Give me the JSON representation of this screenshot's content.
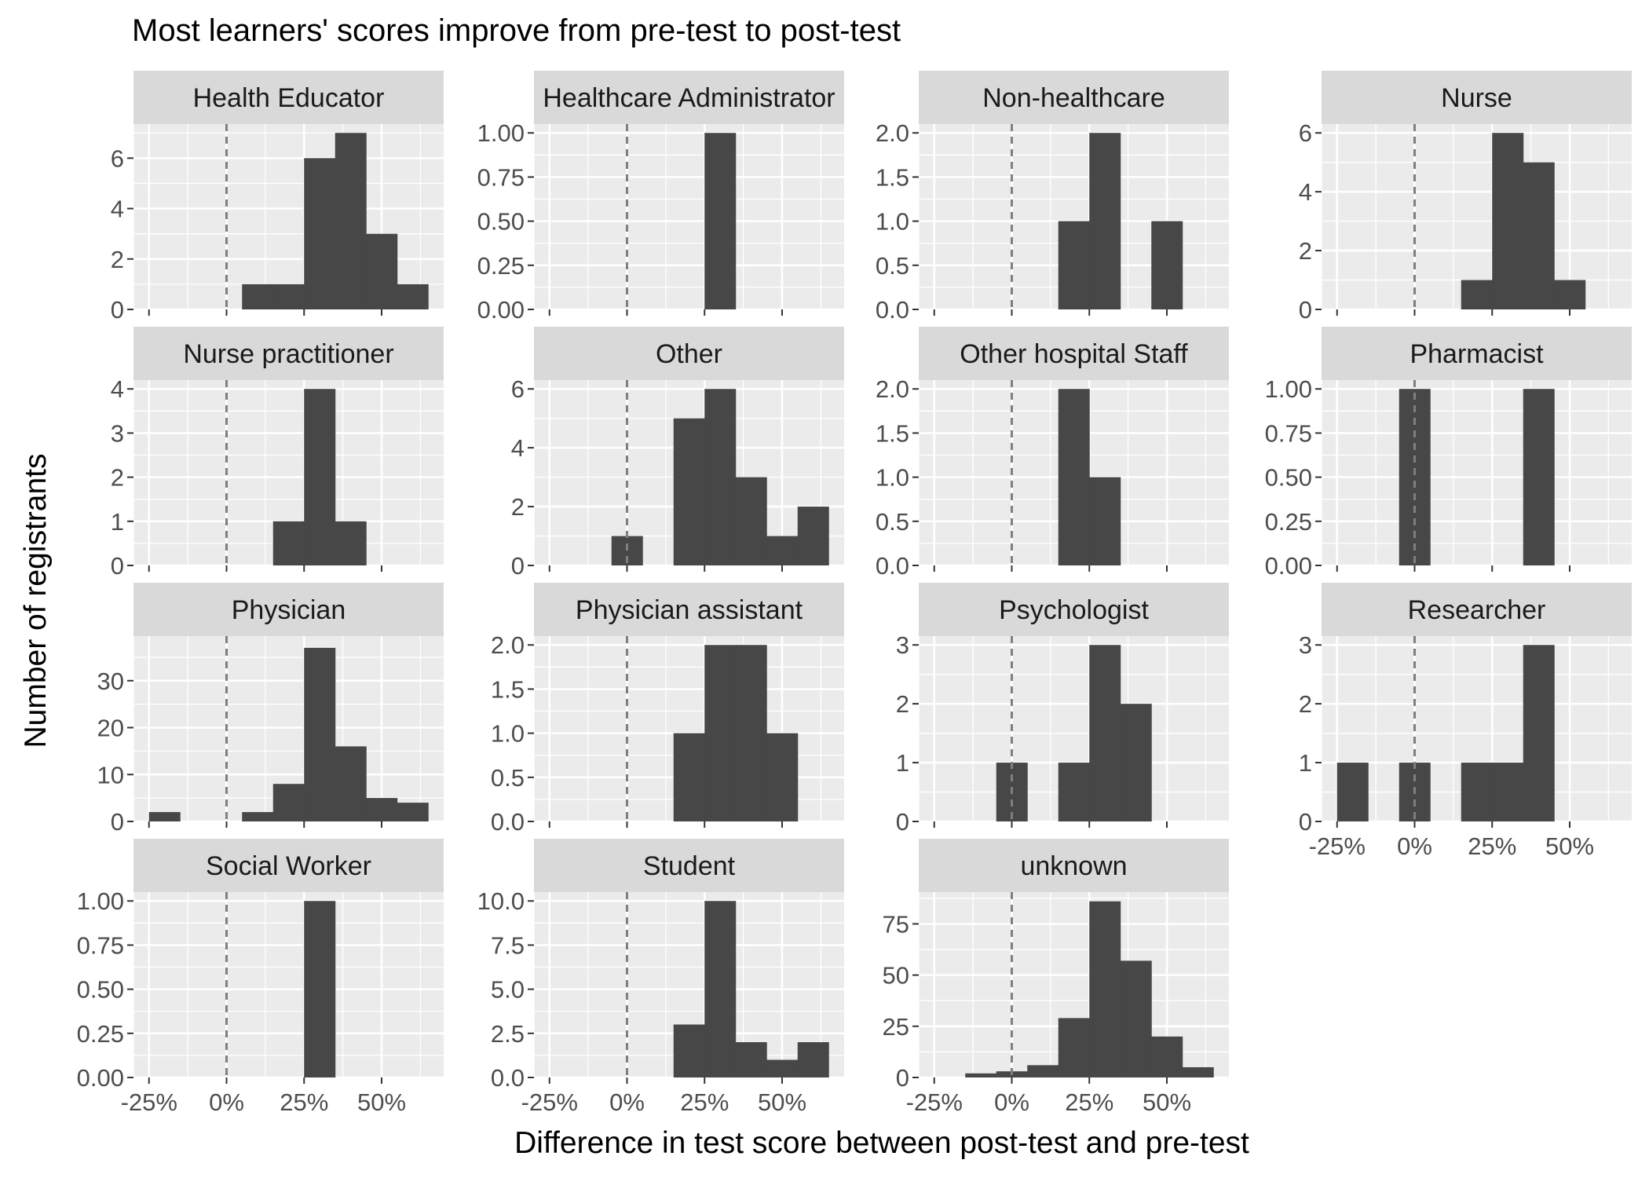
{
  "chart_data": {
    "type": "histogram",
    "title": "Most learners' scores improve from pre-test to post-test",
    "xlabel": "Difference in test score between post-test and pre-test",
    "ylabel": "Number of registrants",
    "facet_layout": "4 columns x 4 rows, free y scales",
    "xlim": [
      -0.3,
      0.7
    ],
    "x_ticks": [
      -0.25,
      0,
      0.25,
      0.5
    ],
    "x_tick_labels": [
      "-25%",
      "0%",
      "25%",
      "50%"
    ],
    "bin_width": 0.1,
    "reference_line": {
      "x": 0,
      "style": "dashed"
    },
    "grid": true,
    "colors": {
      "panel_bg": "#ebebeb",
      "strip_bg": "#d9d9d9",
      "bar": "#474747",
      "grid": "#ffffff",
      "ref_line": "#7f7f7f"
    },
    "panels": [
      {
        "name": "Health Educator",
        "ylim": [
          0,
          7.35
        ],
        "y_ticks": [
          0,
          2,
          4,
          6
        ],
        "y_tick_labels": [
          "0",
          "2",
          "4",
          "6"
        ],
        "bins": [
          {
            "x": 0.1,
            "count": 1
          },
          {
            "x": 0.2,
            "count": 1
          },
          {
            "x": 0.3,
            "count": 6
          },
          {
            "x": 0.4,
            "count": 7
          },
          {
            "x": 0.5,
            "count": 3
          },
          {
            "x": 0.6,
            "count": 1
          }
        ]
      },
      {
        "name": "Healthcare Administrator",
        "ylim": [
          0,
          1.05
        ],
        "y_ticks": [
          0,
          0.25,
          0.5,
          0.75,
          1
        ],
        "y_tick_labels": [
          "0.00",
          "0.25",
          "0.50",
          "0.75",
          "1.00"
        ],
        "bins": [
          {
            "x": 0.3,
            "count": 1
          }
        ]
      },
      {
        "name": "Non-healthcare",
        "ylim": [
          0,
          2.1
        ],
        "y_ticks": [
          0,
          0.5,
          1,
          1.5,
          2
        ],
        "y_tick_labels": [
          "0.0",
          "0.5",
          "1.0",
          "1.5",
          "2.0"
        ],
        "bins": [
          {
            "x": 0.2,
            "count": 1
          },
          {
            "x": 0.3,
            "count": 2
          },
          {
            "x": 0.5,
            "count": 1
          }
        ]
      },
      {
        "name": "Nurse",
        "ylim": [
          0,
          6.3
        ],
        "y_ticks": [
          0,
          2,
          4,
          6
        ],
        "y_tick_labels": [
          "0",
          "2",
          "4",
          "6"
        ],
        "bins": [
          {
            "x": 0.2,
            "count": 1
          },
          {
            "x": 0.3,
            "count": 6
          },
          {
            "x": 0.4,
            "count": 5
          },
          {
            "x": 0.5,
            "count": 1
          }
        ]
      },
      {
        "name": "Nurse practitioner",
        "ylim": [
          0,
          4.2
        ],
        "y_ticks": [
          0,
          1,
          2,
          3,
          4
        ],
        "y_tick_labels": [
          "0",
          "1",
          "2",
          "3",
          "4"
        ],
        "bins": [
          {
            "x": 0.2,
            "count": 1
          },
          {
            "x": 0.3,
            "count": 4
          },
          {
            "x": 0.4,
            "count": 1
          }
        ]
      },
      {
        "name": "Other",
        "ylim": [
          0,
          6.3
        ],
        "y_ticks": [
          0,
          2,
          4,
          6
        ],
        "y_tick_labels": [
          "0",
          "2",
          "4",
          "6"
        ],
        "bins": [
          {
            "x": 0.0,
            "count": 1
          },
          {
            "x": 0.2,
            "count": 5
          },
          {
            "x": 0.3,
            "count": 6
          },
          {
            "x": 0.4,
            "count": 3
          },
          {
            "x": 0.5,
            "count": 1
          },
          {
            "x": 0.6,
            "count": 2
          }
        ]
      },
      {
        "name": "Other hospital Staff",
        "ylim": [
          0,
          2.1
        ],
        "y_ticks": [
          0,
          0.5,
          1,
          1.5,
          2
        ],
        "y_tick_labels": [
          "0.0",
          "0.5",
          "1.0",
          "1.5",
          "2.0"
        ],
        "bins": [
          {
            "x": 0.2,
            "count": 2
          },
          {
            "x": 0.3,
            "count": 1
          }
        ]
      },
      {
        "name": "Pharmacist",
        "ylim": [
          0,
          1.05
        ],
        "y_ticks": [
          0,
          0.25,
          0.5,
          0.75,
          1
        ],
        "y_tick_labels": [
          "0.00",
          "0.25",
          "0.50",
          "0.75",
          "1.00"
        ],
        "bins": [
          {
            "x": 0.0,
            "count": 1
          },
          {
            "x": 0.4,
            "count": 1
          }
        ]
      },
      {
        "name": "Physician",
        "ylim": [
          0,
          39.5
        ],
        "y_ticks": [
          0,
          10,
          20,
          30
        ],
        "y_tick_labels": [
          "0",
          "10",
          "20",
          "30"
        ],
        "bins": [
          {
            "x": -0.2,
            "count": 2
          },
          {
            "x": 0.1,
            "count": 2
          },
          {
            "x": 0.2,
            "count": 8
          },
          {
            "x": 0.3,
            "count": 37
          },
          {
            "x": 0.4,
            "count": 16
          },
          {
            "x": 0.5,
            "count": 5
          },
          {
            "x": 0.6,
            "count": 4
          }
        ]
      },
      {
        "name": "Physician assistant",
        "ylim": [
          0,
          2.1
        ],
        "y_ticks": [
          0,
          0.5,
          1,
          1.5,
          2
        ],
        "y_tick_labels": [
          "0.0",
          "0.5",
          "1.0",
          "1.5",
          "2.0"
        ],
        "bins": [
          {
            "x": 0.2,
            "count": 1
          },
          {
            "x": 0.3,
            "count": 2
          },
          {
            "x": 0.4,
            "count": 2
          },
          {
            "x": 0.5,
            "count": 1
          }
        ]
      },
      {
        "name": "Psychologist",
        "ylim": [
          0,
          3.15
        ],
        "y_ticks": [
          0,
          1,
          2,
          3
        ],
        "y_tick_labels": [
          "0",
          "1",
          "2",
          "3"
        ],
        "bins": [
          {
            "x": 0.0,
            "count": 1
          },
          {
            "x": 0.2,
            "count": 1
          },
          {
            "x": 0.3,
            "count": 3
          },
          {
            "x": 0.4,
            "count": 2
          }
        ]
      },
      {
        "name": "Researcher",
        "ylim": [
          0,
          3.15
        ],
        "y_ticks": [
          0,
          1,
          2,
          3
        ],
        "y_tick_labels": [
          "0",
          "1",
          "2",
          "3"
        ],
        "bins": [
          {
            "x": -0.2,
            "count": 1
          },
          {
            "x": 0.0,
            "count": 1
          },
          {
            "x": 0.2,
            "count": 1
          },
          {
            "x": 0.3,
            "count": 1
          },
          {
            "x": 0.4,
            "count": 3
          }
        ]
      },
      {
        "name": "Social Worker",
        "ylim": [
          0,
          1.05
        ],
        "y_ticks": [
          0,
          0.25,
          0.5,
          0.75,
          1
        ],
        "y_tick_labels": [
          "0.00",
          "0.25",
          "0.50",
          "0.75",
          "1.00"
        ],
        "bins": [
          {
            "x": 0.3,
            "count": 1
          }
        ]
      },
      {
        "name": "Student",
        "ylim": [
          0,
          10.5
        ],
        "y_ticks": [
          0,
          2.5,
          5,
          7.5,
          10
        ],
        "y_tick_labels": [
          "0.0",
          "2.5",
          "5.0",
          "7.5",
          "10.0"
        ],
        "bins": [
          {
            "x": 0.2,
            "count": 3
          },
          {
            "x": 0.3,
            "count": 10
          },
          {
            "x": 0.4,
            "count": 2
          },
          {
            "x": 0.5,
            "count": 1
          },
          {
            "x": 0.6,
            "count": 2
          }
        ]
      },
      {
        "name": "unknown",
        "ylim": [
          0,
          90.5
        ],
        "y_ticks": [
          0,
          25,
          50,
          75
        ],
        "y_tick_labels": [
          "0",
          "25",
          "50",
          "75"
        ],
        "bins": [
          {
            "x": -0.1,
            "count": 2
          },
          {
            "x": 0.0,
            "count": 3
          },
          {
            "x": 0.1,
            "count": 6
          },
          {
            "x": 0.2,
            "count": 29
          },
          {
            "x": 0.3,
            "count": 86
          },
          {
            "x": 0.4,
            "count": 57
          },
          {
            "x": 0.5,
            "count": 20
          },
          {
            "x": 0.6,
            "count": 5
          }
        ]
      }
    ]
  }
}
